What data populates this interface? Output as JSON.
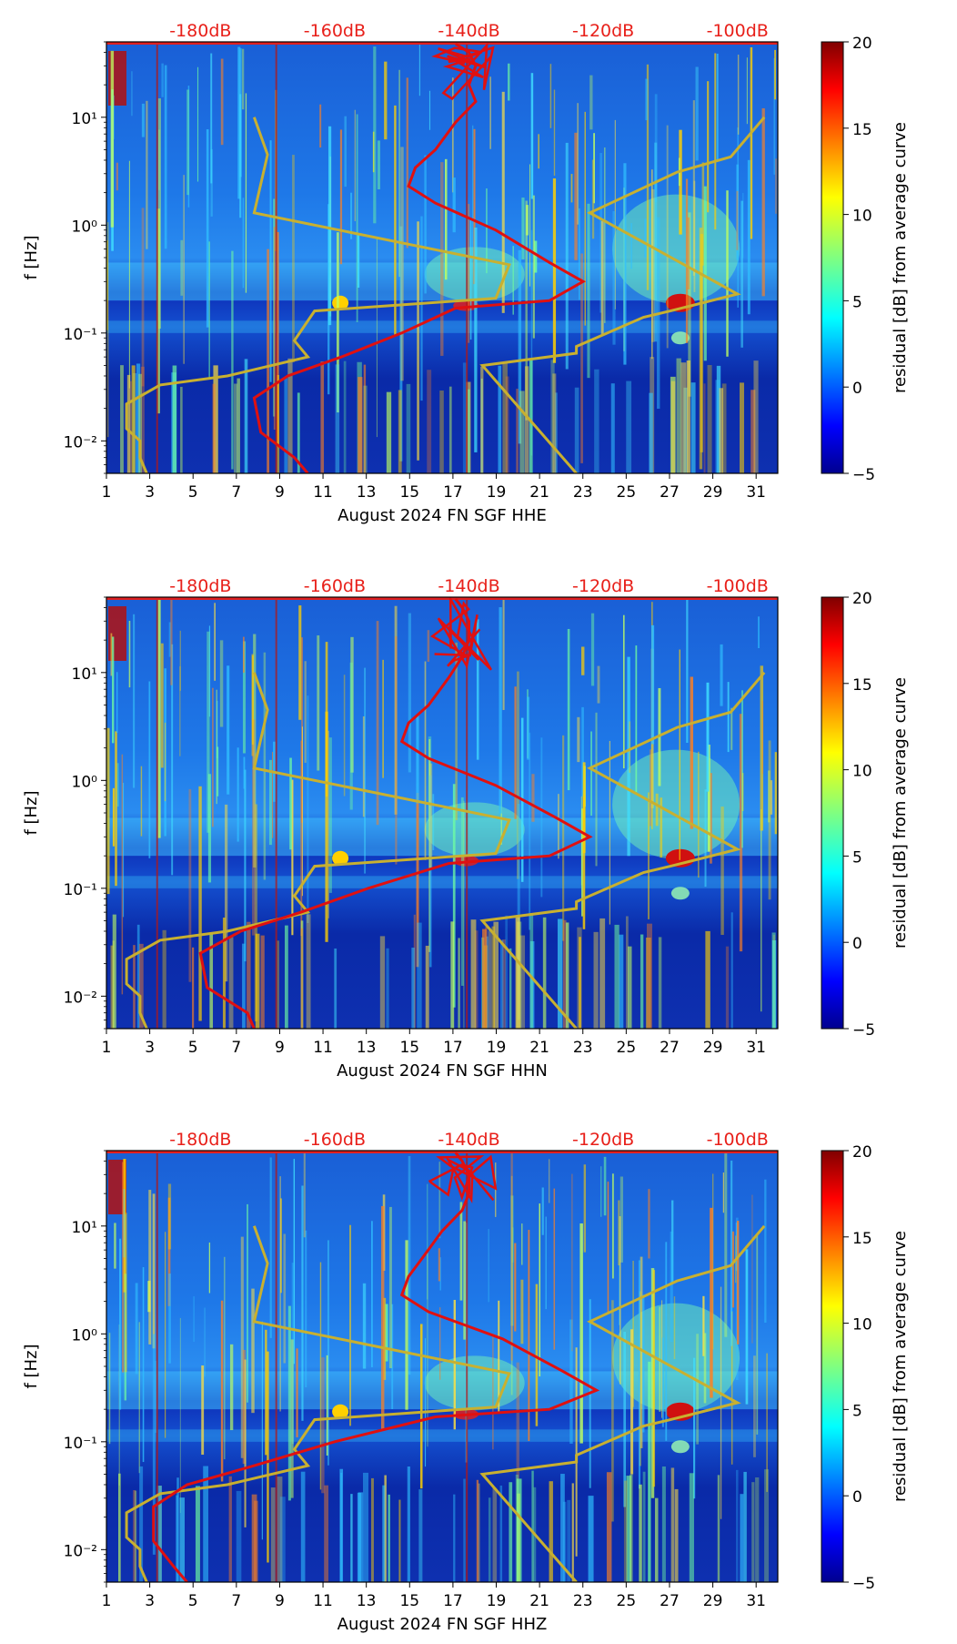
{
  "colors": {
    "nlnm_nhnm": "#c8b030",
    "ppsd_mean": "#e01010",
    "db_scale": "#e8201a",
    "colormap": [
      "#00008f",
      "#0000ff",
      "#0080ff",
      "#00ffff",
      "#80ff80",
      "#ffff00",
      "#ff8000",
      "#ff0000",
      "#800000"
    ]
  },
  "chart_data": [
    {
      "type": "heatmap",
      "channel": "HHE",
      "xlabel": "August 2024 FN SGF  HHE",
      "ylabel": "f [Hz]",
      "x_ticks": [
        "1",
        "3",
        "5",
        "7",
        "9",
        "11",
        "13",
        "15",
        "17",
        "19",
        "21",
        "23",
        "25",
        "27",
        "29",
        "31"
      ],
      "x_range": [
        1,
        32
      ],
      "y_ticks": [
        "10⁻²",
        "10⁻¹",
        "10⁰",
        "10¹"
      ],
      "y_range_hz": [
        0.005,
        50
      ],
      "db_ticks": [
        "-180dB",
        "-160dB",
        "-140dB",
        "-120dB",
        "-100dB"
      ],
      "db_range": [
        -194,
        -94
      ],
      "colorbar": {
        "label": "residual [dB] from average curve",
        "range": [
          -5,
          20
        ],
        "ticks": [
          "20",
          "15",
          "10",
          "5",
          "0",
          "−5"
        ]
      },
      "noise_model_curve": [
        [
          -172,
          10
        ],
        [
          -170,
          4.5
        ],
        [
          -172,
          1.3
        ],
        [
          -134,
          0.43
        ],
        [
          -136,
          0.21
        ],
        [
          -163,
          0.16
        ],
        [
          -166,
          0.085
        ],
        [
          -164,
          0.06
        ],
        [
          -176,
          0.04
        ],
        [
          -186,
          0.033
        ],
        [
          -191,
          0.022
        ],
        [
          -191,
          0.013
        ],
        [
          -189,
          0.01
        ],
        [
          -189,
          0.007
        ],
        [
          -188,
          0.005
        ]
      ],
      "noise_model_high": [
        [
          -96,
          10
        ],
        [
          -101,
          4.3
        ],
        [
          -109,
          3.1
        ],
        [
          -122,
          1.3
        ],
        [
          -100,
          0.23
        ],
        [
          -110,
          0.16
        ],
        [
          -114,
          0.14
        ],
        [
          -124,
          0.075
        ],
        [
          -124,
          0.065
        ],
        [
          -138,
          0.05
        ],
        [
          -124,
          0.005
        ]
      ],
      "mean_curve": [
        [
          -142,
          48
        ],
        [
          -140,
          40
        ],
        [
          -139,
          30
        ],
        [
          -140,
          20
        ],
        [
          -139,
          14
        ],
        [
          -142,
          9
        ],
        [
          -145,
          5
        ],
        [
          -148,
          3.4
        ],
        [
          -149,
          2.3
        ],
        [
          -145,
          1.6
        ],
        [
          -136,
          0.9
        ],
        [
          -128,
          0.45
        ],
        [
          -123,
          0.3
        ],
        [
          -128,
          0.2
        ],
        [
          -142,
          0.17
        ],
        [
          -150,
          0.1
        ],
        [
          -159,
          0.06
        ],
        [
          -167,
          0.04
        ],
        [
          -172,
          0.025
        ],
        [
          -171,
          0.012
        ],
        [
          -166,
          0.007
        ],
        [
          -164,
          0.005
        ]
      ]
    },
    {
      "type": "heatmap",
      "channel": "HHN",
      "xlabel": "August 2024 FN SGF  HHN",
      "ylabel": "f [Hz]",
      "x_ticks": [
        "1",
        "3",
        "5",
        "7",
        "9",
        "11",
        "13",
        "15",
        "17",
        "19",
        "21",
        "23",
        "25",
        "27",
        "29",
        "31"
      ],
      "x_range": [
        1,
        32
      ],
      "y_ticks": [
        "10⁻²",
        "10⁻¹",
        "10⁰",
        "10¹"
      ],
      "y_range_hz": [
        0.005,
        50
      ],
      "db_ticks": [
        "-180dB",
        "-160dB",
        "-140dB",
        "-120dB",
        "-100dB"
      ],
      "db_range": [
        -194,
        -94
      ],
      "colorbar": {
        "label": "residual [dB] from average curve",
        "range": [
          -5,
          20
        ],
        "ticks": [
          "20",
          "15",
          "10",
          "5",
          "0",
          "−5"
        ]
      },
      "noise_model_curve": [
        [
          -172,
          10
        ],
        [
          -170,
          4.5
        ],
        [
          -172,
          1.3
        ],
        [
          -134,
          0.43
        ],
        [
          -136,
          0.21
        ],
        [
          -163,
          0.16
        ],
        [
          -166,
          0.085
        ],
        [
          -164,
          0.06
        ],
        [
          -176,
          0.04
        ],
        [
          -186,
          0.033
        ],
        [
          -191,
          0.022
        ],
        [
          -191,
          0.013
        ],
        [
          -189,
          0.01
        ],
        [
          -189,
          0.007
        ],
        [
          -188,
          0.005
        ]
      ],
      "noise_model_high": [
        [
          -96,
          10
        ],
        [
          -101,
          4.3
        ],
        [
          -109,
          3.1
        ],
        [
          -122,
          1.3
        ],
        [
          -100,
          0.23
        ],
        [
          -110,
          0.16
        ],
        [
          -114,
          0.14
        ],
        [
          -124,
          0.075
        ],
        [
          -124,
          0.065
        ],
        [
          -138,
          0.05
        ],
        [
          -124,
          0.005
        ]
      ],
      "mean_curve": [
        [
          -142,
          48
        ],
        [
          -141,
          40
        ],
        [
          -140,
          30
        ],
        [
          -140,
          20
        ],
        [
          -141,
          14
        ],
        [
          -143,
          9
        ],
        [
          -146,
          5
        ],
        [
          -149,
          3.4
        ],
        [
          -150,
          2.3
        ],
        [
          -146,
          1.6
        ],
        [
          -136,
          0.9
        ],
        [
          -127,
          0.45
        ],
        [
          -122,
          0.3
        ],
        [
          -128,
          0.2
        ],
        [
          -143,
          0.17
        ],
        [
          -155,
          0.1
        ],
        [
          -165,
          0.06
        ],
        [
          -174,
          0.04
        ],
        [
          -180,
          0.025
        ],
        [
          -179,
          0.012
        ],
        [
          -173,
          0.007
        ],
        [
          -172,
          0.005
        ]
      ]
    },
    {
      "type": "heatmap",
      "channel": "HHZ",
      "xlabel": "August 2024 FN SGF  HHZ",
      "ylabel": "f [Hz]",
      "x_ticks": [
        "1",
        "3",
        "5",
        "7",
        "9",
        "11",
        "13",
        "15",
        "17",
        "19",
        "21",
        "23",
        "25",
        "27",
        "29",
        "31"
      ],
      "x_range": [
        1,
        32
      ],
      "y_ticks": [
        "10⁻²",
        "10⁻¹",
        "10⁰",
        "10¹"
      ],
      "y_range_hz": [
        0.005,
        50
      ],
      "db_ticks": [
        "-180dB",
        "-160dB",
        "-140dB",
        "-120dB",
        "-100dB"
      ],
      "db_range": [
        -194,
        -94
      ],
      "colorbar": {
        "label": "residual [dB] from average curve",
        "range": [
          -5,
          20
        ],
        "ticks": [
          "20",
          "15",
          "10",
          "5",
          "0",
          "−5"
        ]
      },
      "noise_model_curve": [
        [
          -172,
          10
        ],
        [
          -170,
          4.5
        ],
        [
          -172,
          1.3
        ],
        [
          -134,
          0.43
        ],
        [
          -136,
          0.21
        ],
        [
          -163,
          0.16
        ],
        [
          -166,
          0.085
        ],
        [
          -164,
          0.06
        ],
        [
          -176,
          0.04
        ],
        [
          -186,
          0.033
        ],
        [
          -191,
          0.022
        ],
        [
          -191,
          0.013
        ],
        [
          -189,
          0.01
        ],
        [
          -189,
          0.007
        ],
        [
          -188,
          0.005
        ]
      ],
      "noise_model_high": [
        [
          -96,
          10
        ],
        [
          -101,
          4.3
        ],
        [
          -109,
          3.1
        ],
        [
          -122,
          1.3
        ],
        [
          -100,
          0.23
        ],
        [
          -110,
          0.16
        ],
        [
          -114,
          0.14
        ],
        [
          -124,
          0.075
        ],
        [
          -124,
          0.065
        ],
        [
          -138,
          0.05
        ],
        [
          -124,
          0.005
        ]
      ],
      "mean_curve": [
        [
          -142,
          48
        ],
        [
          -141,
          40
        ],
        [
          -140,
          30
        ],
        [
          -140,
          20
        ],
        [
          -141,
          14
        ],
        [
          -144,
          9
        ],
        [
          -147,
          5
        ],
        [
          -149,
          3.4
        ],
        [
          -150,
          2.3
        ],
        [
          -146,
          1.6
        ],
        [
          -135,
          0.9
        ],
        [
          -126,
          0.45
        ],
        [
          -121,
          0.3
        ],
        [
          -128,
          0.2
        ],
        [
          -145,
          0.17
        ],
        [
          -160,
          0.1
        ],
        [
          -172,
          0.06
        ],
        [
          -182,
          0.04
        ],
        [
          -187,
          0.025
        ],
        [
          -187,
          0.012
        ],
        [
          -184,
          0.007
        ],
        [
          -182,
          0.005
        ]
      ]
    }
  ]
}
